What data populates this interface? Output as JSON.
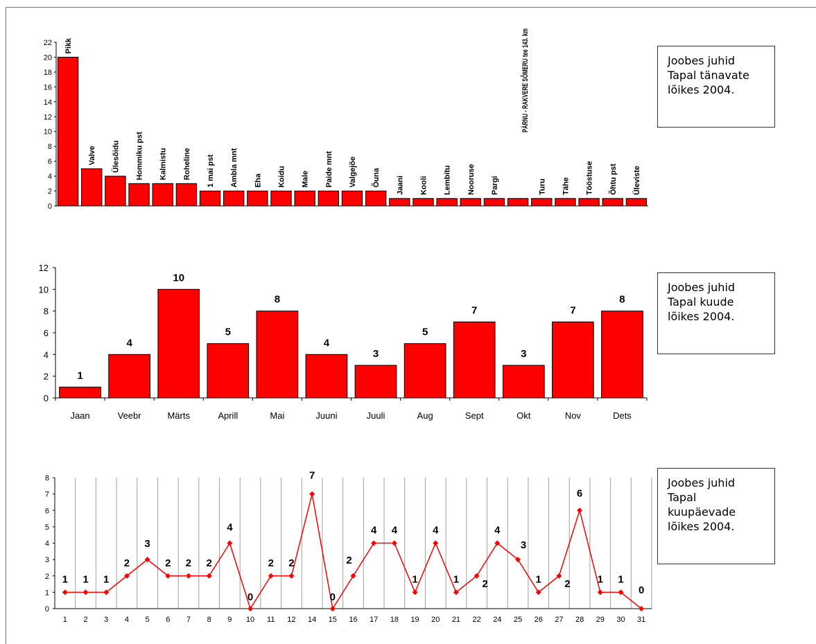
{
  "captions": [
    "Joobes juhid\nTapal tänavate\nlõikes 2004.",
    "Joobes juhid\nTapal kuude\nlõikes 2004.",
    "Joobes juhid\nTapal\nkuupäevade\nlõikes 2004."
  ],
  "colors": {
    "bar": "#ff0000",
    "line": "#ff0000",
    "grid": "#a0a0a0"
  },
  "chart_data": [
    {
      "type": "bar",
      "categories": [
        "Pikk",
        "Valve",
        "Ülesõidu",
        "Hommiku pst",
        "Kalmistu",
        "Roheline",
        "1 mai pst",
        "Ambla mnt",
        "Eha",
        "Koidu",
        "Male",
        "Paide mnt",
        "Valgejõe",
        "Õuna",
        "Jaani",
        "Kooli",
        "Lembitu",
        "Nooruse",
        "Pargi",
        "PÄRNU - RAKVERE SÕMERU tee 143. km",
        "Turu",
        "Tähe",
        "Tööstuse",
        "Õhtu pst",
        "Üleviste"
      ],
      "values": [
        20,
        5,
        4,
        3,
        3,
        3,
        2,
        2,
        2,
        2,
        2,
        2,
        2,
        2,
        1,
        1,
        1,
        1,
        1,
        1,
        1,
        1,
        1,
        1,
        1
      ],
      "ylim": [
        0,
        22
      ],
      "yticks": [
        0,
        2,
        4,
        6,
        8,
        10,
        12,
        14,
        16,
        18,
        20,
        22
      ]
    },
    {
      "type": "bar",
      "categories": [
        "Jaan",
        "Veebr",
        "Märts",
        "Aprill",
        "Mai",
        "Juuni",
        "Juuli",
        "Aug",
        "Sept",
        "Okt",
        "Nov",
        "Dets"
      ],
      "values": [
        1,
        4,
        10,
        5,
        8,
        4,
        3,
        5,
        7,
        3,
        7,
        8
      ],
      "ylim": [
        0,
        12
      ],
      "yticks": [
        0,
        2,
        4,
        6,
        8,
        10,
        12
      ]
    },
    {
      "type": "line",
      "x": [
        "1",
        "2",
        "3",
        "4",
        "5",
        "6",
        "7",
        "8",
        "9",
        "10",
        "11",
        "12",
        "14",
        "15",
        "16",
        "17",
        "18",
        "19",
        "20",
        "21",
        "22",
        "24",
        "25",
        "26",
        "27",
        "28",
        "29",
        "30",
        "31"
      ],
      "values": [
        1,
        1,
        1,
        2,
        3,
        2,
        2,
        2,
        4,
        0,
        2,
        2,
        7,
        0,
        2,
        4,
        4,
        1,
        4,
        1,
        2,
        4,
        3,
        1,
        2,
        6,
        1,
        1,
        0
      ],
      "ylim": [
        0,
        8
      ],
      "yticks": [
        0,
        1,
        2,
        3,
        4,
        5,
        6,
        7,
        8
      ],
      "grid": true
    }
  ]
}
